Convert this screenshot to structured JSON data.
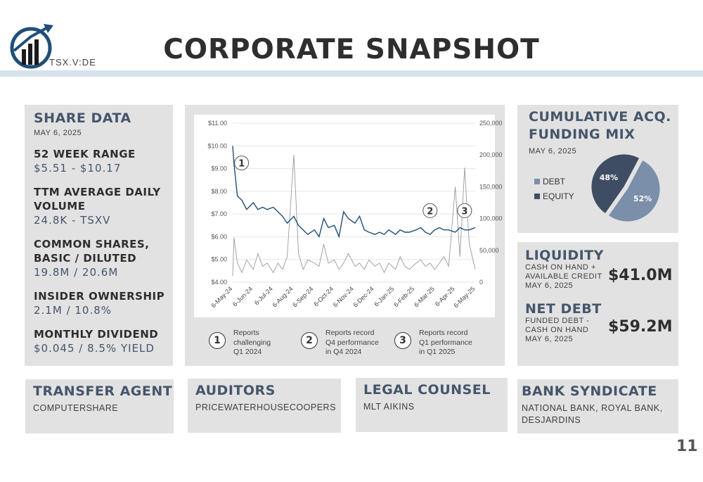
{
  "header": {
    "ticker": "TSX.V:DE",
    "title": "CORPORATE SNAPSHOT"
  },
  "share_data": {
    "heading": "SHARE DATA",
    "date": "MAY 6, 2025",
    "metrics": [
      {
        "label": "52 WEEK RANGE",
        "value": "$5.51 - $10.17"
      },
      {
        "label": "TTM AVERAGE DAILY VOLUME",
        "value": "24.8K - TSXV"
      },
      {
        "label": "COMMON SHARES, BASIC / DILUTED",
        "value": "19.8M / 20.6M"
      },
      {
        "label": "INSIDER OWNERSHIP",
        "value": "2.1M / 10.8%"
      },
      {
        "label": "MONTHLY DIVIDEND",
        "value": "$0.045 / 8.5% YIELD"
      }
    ]
  },
  "callouts": [
    {
      "num": "1",
      "text": [
        "Reports",
        "challenging",
        "Q1 2024"
      ]
    },
    {
      "num": "2",
      "text": [
        "Reports record",
        "Q4 performance",
        "in Q4 2024"
      ]
    },
    {
      "num": "3",
      "text": [
        "Reports record",
        "Q1 performance",
        "in Q1 2025"
      ]
    }
  ],
  "chart_data": [
    {
      "type": "line",
      "title": "",
      "x_tick_labels": [
        "6-May-24",
        "6-Jun-24",
        "6-Jul-24",
        "6-Aug-24",
        "6-Sep-24",
        "6-Oct-24",
        "6-Nov-24",
        "6-Dec-24",
        "6-Jan-25",
        "6-Feb-25",
        "6-Mar-25",
        "6-Apr-25",
        "6-May-25"
      ],
      "y_left_ticks": [
        "$11.00",
        "$10.00",
        "$9.00",
        "$8.00",
        "$7.00",
        "$6.00",
        "$5.00",
        "$4.00"
      ],
      "y_left_range": [
        4,
        11
      ],
      "y_right_ticks": [
        "250,000",
        "200,000",
        "150,000",
        "100,000",
        "50,000",
        "0"
      ],
      "y_right_range": [
        0,
        250000
      ],
      "grid": true,
      "series": [
        {
          "axis": "left",
          "color": "#1f4e79",
          "x": [
            "6-May-24",
            "8-May-24",
            "13-May-24",
            "20-May-24",
            "27-May-24",
            "6-Jun-24",
            "13-Jun-24",
            "20-Jun-24",
            "27-Jun-24",
            "6-Jul-24",
            "13-Jul-24",
            "20-Jul-24",
            "27-Jul-24",
            "6-Aug-24",
            "13-Aug-24",
            "20-Aug-24",
            "27-Aug-24",
            "6-Sep-24",
            "13-Sep-24",
            "20-Sep-24",
            "27-Sep-24",
            "6-Oct-24",
            "13-Oct-24",
            "20-Oct-24",
            "27-Oct-24",
            "6-Nov-24",
            "13-Nov-24",
            "20-Nov-24",
            "27-Nov-24",
            "6-Dec-24",
            "13-Dec-24",
            "20-Dec-24",
            "27-Dec-24",
            "6-Jan-25",
            "13-Jan-25",
            "20-Jan-25",
            "27-Jan-25",
            "6-Feb-25",
            "13-Feb-25",
            "20-Feb-25",
            "27-Feb-25",
            "6-Mar-25",
            "13-Mar-25",
            "20-Mar-25",
            "27-Mar-25",
            "6-Apr-25",
            "13-Apr-25",
            "20-Apr-25",
            "27-Apr-25",
            "6-May-25"
          ],
          "values": [
            10.0,
            9.2,
            7.8,
            7.6,
            7.2,
            7.5,
            7.2,
            7.3,
            7.2,
            7.3,
            7.1,
            6.9,
            6.6,
            6.9,
            6.5,
            6.3,
            6.1,
            6.3,
            6.0,
            6.8,
            6.4,
            6.5,
            6.0,
            7.1,
            6.8,
            6.6,
            6.9,
            6.3,
            6.2,
            6.1,
            6.2,
            6.1,
            6.3,
            6.1,
            6.3,
            6.2,
            6.2,
            6.3,
            6.4,
            6.2,
            6.1,
            6.3,
            6.4,
            6.3,
            6.3,
            6.2,
            6.4,
            6.3,
            6.3,
            6.4
          ]
        },
        {
          "axis": "right",
          "color": "#9a9a9a",
          "x": [
            "6-May-24",
            "8-May-24",
            "13-May-24",
            "20-May-24",
            "27-May-24",
            "6-Jun-24",
            "13-Jun-24",
            "20-Jun-24",
            "27-Jun-24",
            "6-Jul-24",
            "13-Jul-24",
            "20-Jul-24",
            "27-Jul-24",
            "6-Aug-24",
            "13-Aug-24",
            "20-Aug-24",
            "27-Aug-24",
            "6-Sep-24",
            "13-Sep-24",
            "20-Sep-24",
            "27-Sep-24",
            "6-Oct-24",
            "13-Oct-24",
            "20-Oct-24",
            "27-Oct-24",
            "6-Nov-24",
            "13-Nov-24",
            "20-Nov-24",
            "27-Nov-24",
            "6-Dec-24",
            "13-Dec-24",
            "20-Dec-24",
            "27-Dec-24",
            "6-Jan-25",
            "13-Jan-25",
            "20-Jan-25",
            "27-Jan-25",
            "6-Feb-25",
            "13-Feb-25",
            "20-Feb-25",
            "27-Feb-25",
            "6-Mar-25",
            "13-Mar-25",
            "20-Mar-25",
            "27-Mar-25",
            "6-Apr-25",
            "13-Apr-25",
            "20-Apr-25",
            "27-Apr-25",
            "6-May-25"
          ],
          "values": [
            10000,
            70000,
            30000,
            15000,
            35000,
            20000,
            45000,
            25000,
            30000,
            15000,
            30000,
            20000,
            40000,
            200000,
            45000,
            20000,
            35000,
            30000,
            25000,
            60000,
            30000,
            35000,
            20000,
            30000,
            45000,
            25000,
            30000,
            20000,
            35000,
            25000,
            30000,
            15000,
            30000,
            20000,
            40000,
            25000,
            20000,
            30000,
            35000,
            25000,
            30000,
            20000,
            30000,
            40000,
            25000,
            150000,
            40000,
            180000,
            60000,
            20000
          ]
        }
      ]
    },
    {
      "type": "pie",
      "title": "",
      "categories": [
        "DEBT",
        "EQUITY"
      ],
      "values": [
        52,
        48
      ],
      "labels": [
        "52%",
        "48%"
      ],
      "colors": [
        "#7b8fab",
        "#3e4d63"
      ]
    }
  ],
  "funding": {
    "heading_line1": "CUMULATIVE ACQ.",
    "heading_line2": "FUNDING MIX",
    "date": "MAY 6, 2025",
    "legend": [
      "DEBT",
      "EQUITY"
    ]
  },
  "liquidity": {
    "heading": "LIQUIDITY",
    "desc": [
      "CASH ON HAND +",
      "AVAILABLE CREDIT",
      "MAY 6, 2025"
    ],
    "value": "$41.0M"
  },
  "net_debt": {
    "heading": "NET DEBT",
    "desc": [
      "FUNDED DEBT -",
      "CASH ON HAND",
      "MAY 6, 2025"
    ],
    "value": "$59.2M"
  },
  "bottom": {
    "transfer": {
      "heading": "TRANSFER AGENT",
      "text": "COMPUTERSHARE"
    },
    "auditors": {
      "heading": "AUDITORS",
      "text": "PRICEWATERHOUSECOOPERS"
    },
    "legal": {
      "heading": "LEGAL COUNSEL",
      "text": "MLT AIKINS"
    },
    "bank": {
      "heading": "BANK SYNDICATE",
      "text_line1": "NATIONAL BANK, ROYAL BANK,",
      "text_line2": "DESJARDINS"
    }
  },
  "page_number": "11"
}
